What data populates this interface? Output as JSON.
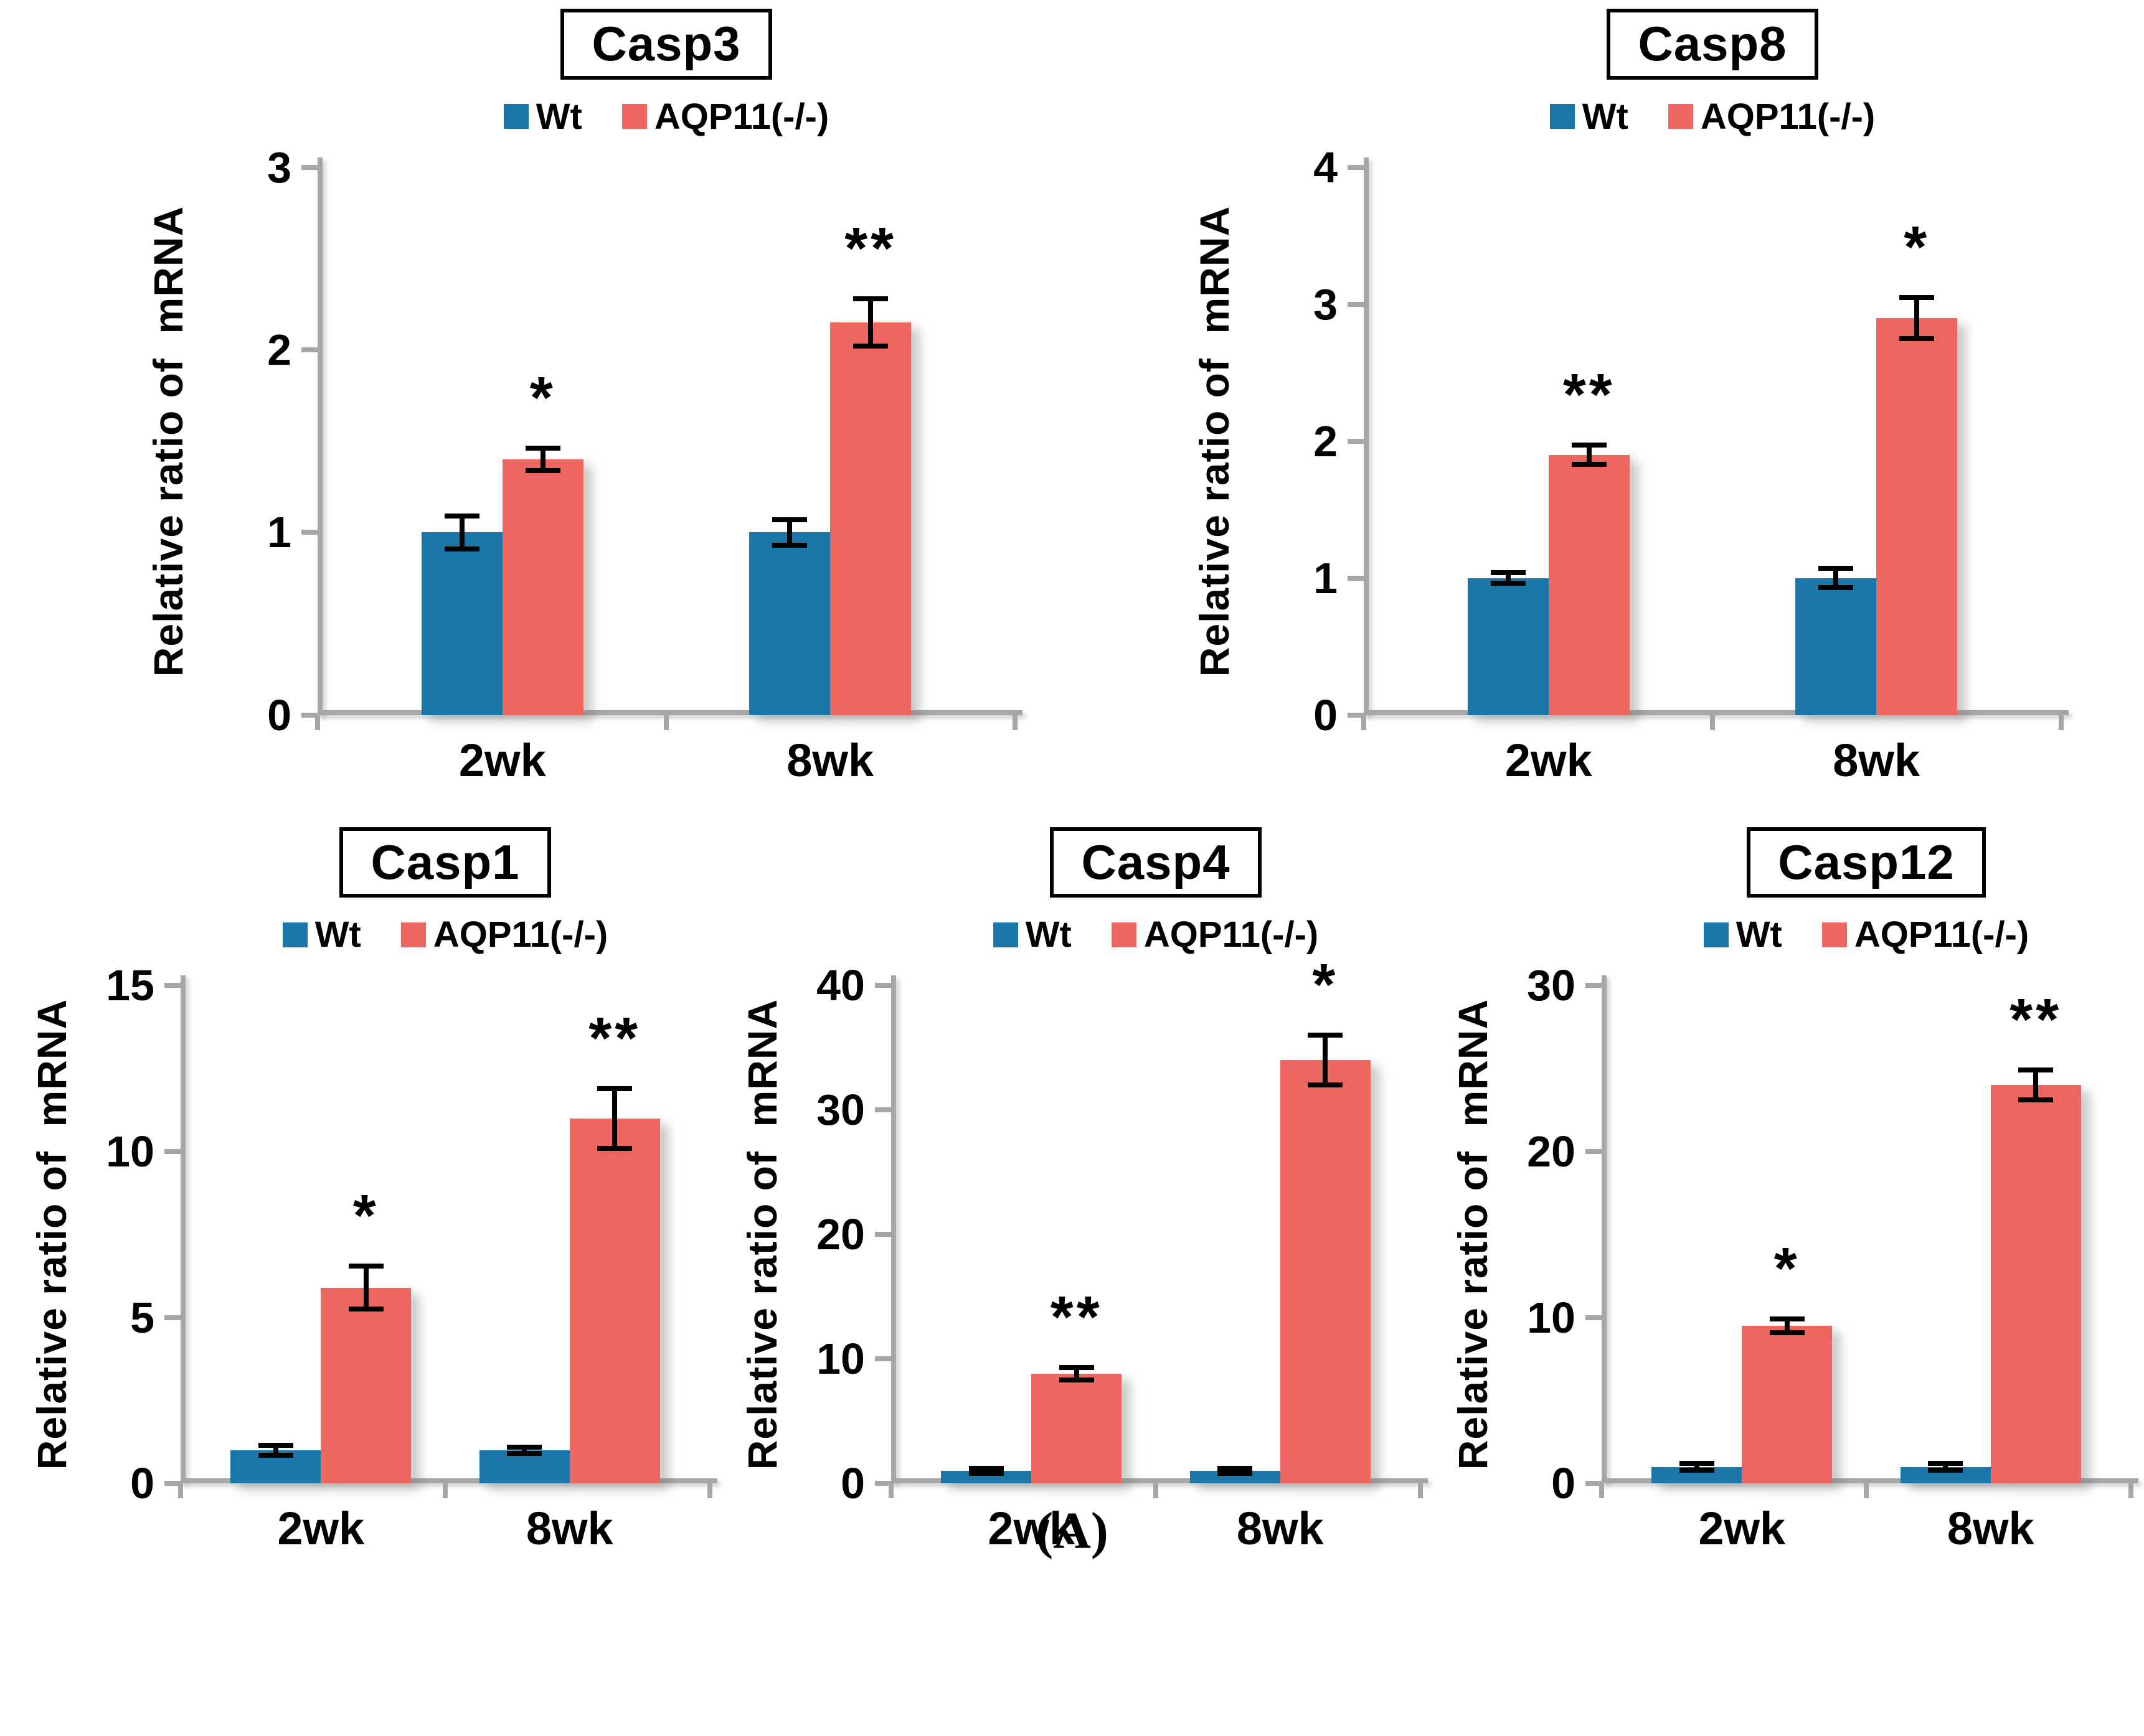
{
  "caption": "(A)",
  "legend": {
    "wt": "Wt",
    "ko": "AQP11(-/-)"
  },
  "colors": {
    "wt": "#1B76A9",
    "ko": "#EE6660",
    "axis": "#A6A6A6",
    "error": "#000000"
  },
  "chart_data": [
    {
      "type": "bar",
      "title": "Casp3",
      "ylabel": "Relative ratio of  mRNA",
      "xlabel": "",
      "ylim": [
        0,
        3
      ],
      "yticks": [
        0,
        1,
        2,
        3
      ],
      "categories": [
        "2wk",
        "8wk"
      ],
      "series": [
        {
          "name": "Wt",
          "values": [
            1.0,
            1.0
          ],
          "errors": [
            0.09,
            0.07
          ]
        },
        {
          "name": "AQP11(-/-)",
          "values": [
            1.4,
            2.15
          ],
          "errors": [
            0.06,
            0.13
          ]
        }
      ],
      "significance": [
        "*",
        "**"
      ],
      "grid": "off",
      "legend_position": "top"
    },
    {
      "type": "bar",
      "title": "Casp8",
      "ylabel": "Relative ratio of  mRNA",
      "xlabel": "",
      "ylim": [
        0,
        4
      ],
      "yticks": [
        0,
        1,
        2,
        3,
        4
      ],
      "categories": [
        "2wk",
        "8wk"
      ],
      "series": [
        {
          "name": "Wt",
          "values": [
            1.0,
            1.0
          ],
          "errors": [
            0.04,
            0.07
          ]
        },
        {
          "name": "AQP11(-/-)",
          "values": [
            1.9,
            2.9
          ],
          "errors": [
            0.07,
            0.15
          ]
        }
      ],
      "significance": [
        "**",
        "*"
      ],
      "grid": "off",
      "legend_position": "top"
    },
    {
      "type": "bar",
      "title": "Casp1",
      "ylabel": "Relative ratio of  mRNA",
      "xlabel": "",
      "ylim": [
        0,
        15
      ],
      "yticks": [
        0,
        5,
        10,
        15
      ],
      "categories": [
        "2wk",
        "8wk"
      ],
      "series": [
        {
          "name": "Wt",
          "values": [
            1.0,
            1.0
          ],
          "errors": [
            0.15,
            0.1
          ]
        },
        {
          "name": "AQP11(-/-)",
          "values": [
            5.9,
            11.0
          ],
          "errors": [
            0.65,
            0.9
          ]
        }
      ],
      "significance": [
        "*",
        "**"
      ],
      "grid": "off",
      "legend_position": "top"
    },
    {
      "type": "bar",
      "title": "Casp4",
      "ylabel": "Relative ratio of  mRNA",
      "xlabel": "",
      "ylim": [
        0,
        40
      ],
      "yticks": [
        0,
        10,
        20,
        30,
        40
      ],
      "categories": [
        "2wk",
        "8wk"
      ],
      "series": [
        {
          "name": "Wt",
          "values": [
            1.0,
            1.0
          ],
          "errors": [
            0.2,
            0.2
          ]
        },
        {
          "name": "AQP11(-/-)",
          "values": [
            8.8,
            34.0
          ],
          "errors": [
            0.5,
            2.0
          ]
        }
      ],
      "significance": [
        "**",
        "*"
      ],
      "grid": "off",
      "legend_position": "top"
    },
    {
      "type": "bar",
      "title": "Casp12",
      "ylabel": "Relative ratio of  mRNA",
      "xlabel": "",
      "ylim": [
        0,
        30
      ],
      "yticks": [
        0,
        10,
        20,
        30
      ],
      "categories": [
        "2wk",
        "8wk"
      ],
      "series": [
        {
          "name": "Wt",
          "values": [
            1.0,
            1.0
          ],
          "errors": [
            0.2,
            0.2
          ]
        },
        {
          "name": "AQP11(-/-)",
          "values": [
            9.5,
            24.0
          ],
          "errors": [
            0.4,
            0.9
          ]
        }
      ],
      "significance": [
        "*",
        "**"
      ],
      "grid": "off",
      "legend_position": "top"
    }
  ]
}
